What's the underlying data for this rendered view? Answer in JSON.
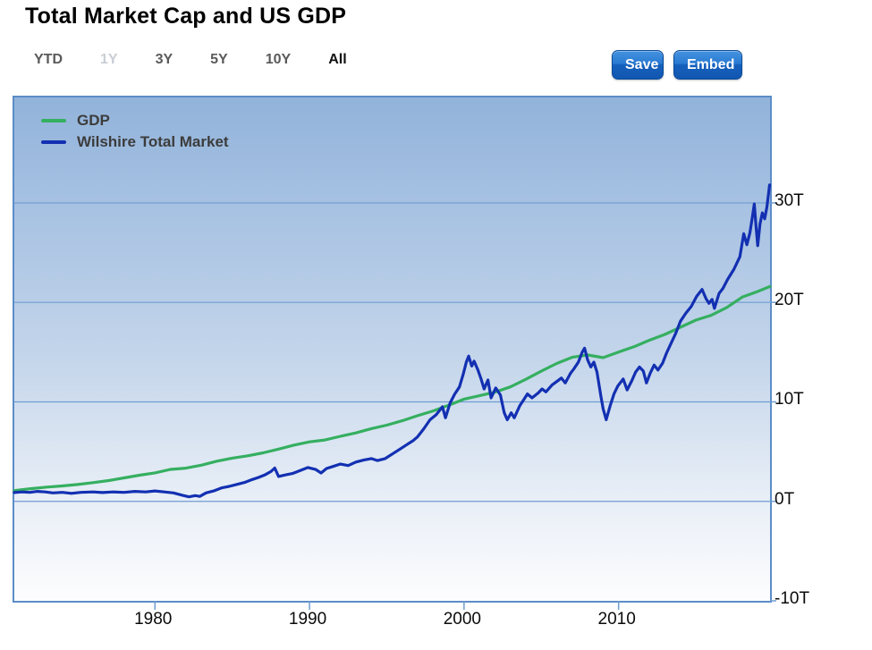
{
  "page": {
    "title": "Total Market Cap and US GDP"
  },
  "toolbar": {
    "ranges": [
      {
        "label": "YTD",
        "state": "normal"
      },
      {
        "label": "1Y",
        "state": "disabled"
      },
      {
        "label": "3Y",
        "state": "normal"
      },
      {
        "label": "5Y",
        "state": "normal"
      },
      {
        "label": "10Y",
        "state": "normal"
      },
      {
        "label": "All",
        "state": "active"
      }
    ],
    "save_label": "Save",
    "embed_label": "Embed"
  },
  "colors": {
    "button_blue": "#1560bd",
    "chart_border": "#5c8dc8",
    "grid": "#6f9cd1",
    "plot_top": "#92b3da",
    "plot_bottom": "#ffffff",
    "gdp_line": "#35af60",
    "wilshire_line": "#1330b2",
    "legend_text": "#3c3c3c"
  },
  "chart_data": {
    "type": "line",
    "title": "Total Market Cap and US GDP",
    "xlabel": "",
    "ylabel": "",
    "unit": "trillions USD",
    "xlim": [
      1970.9,
      2019.8
    ],
    "ylim": [
      -10,
      40.6
    ],
    "grid": "horizontal",
    "grid_values": [
      30,
      20,
      10,
      0
    ],
    "legend_position": "top-left",
    "yticks": [
      {
        "value": 30,
        "label": "30T"
      },
      {
        "value": 20,
        "label": "20T"
      },
      {
        "value": 10,
        "label": "10T"
      },
      {
        "value": 0,
        "label": "0T"
      },
      {
        "value": -10,
        "label": "-10T"
      }
    ],
    "xticks": [
      {
        "value": 1980,
        "label": "1980"
      },
      {
        "value": 1990,
        "label": "1990"
      },
      {
        "value": 2000,
        "label": "2000"
      },
      {
        "value": 2010,
        "label": "2010"
      }
    ],
    "series": [
      {
        "name": "GDP",
        "color": "#35af60",
        "points": [
          [
            1970.9,
            1.08
          ],
          [
            1972,
            1.28
          ],
          [
            1973,
            1.43
          ],
          [
            1974,
            1.55
          ],
          [
            1975,
            1.69
          ],
          [
            1976,
            1.88
          ],
          [
            1977,
            2.09
          ],
          [
            1978,
            2.36
          ],
          [
            1979,
            2.63
          ],
          [
            1980,
            2.86
          ],
          [
            1981,
            3.21
          ],
          [
            1982,
            3.34
          ],
          [
            1983,
            3.63
          ],
          [
            1984,
            4.04
          ],
          [
            1985,
            4.34
          ],
          [
            1986,
            4.58
          ],
          [
            1987,
            4.87
          ],
          [
            1988,
            5.25
          ],
          [
            1989,
            5.66
          ],
          [
            1990,
            5.98
          ],
          [
            1991,
            6.17
          ],
          [
            1992,
            6.54
          ],
          [
            1993,
            6.88
          ],
          [
            1994,
            7.31
          ],
          [
            1995,
            7.66
          ],
          [
            1996,
            8.1
          ],
          [
            1997,
            8.61
          ],
          [
            1998,
            9.09
          ],
          [
            1999,
            9.66
          ],
          [
            2000,
            10.28
          ],
          [
            2001,
            10.62
          ],
          [
            2002,
            10.98
          ],
          [
            2003,
            11.51
          ],
          [
            2004,
            12.27
          ],
          [
            2005,
            13.09
          ],
          [
            2006,
            13.86
          ],
          [
            2007,
            14.48
          ],
          [
            2008,
            14.72
          ],
          [
            2009,
            14.45
          ],
          [
            2010,
            15.0
          ],
          [
            2011,
            15.54
          ],
          [
            2012,
            16.2
          ],
          [
            2013,
            16.78
          ],
          [
            2014,
            17.5
          ],
          [
            2015,
            18.22
          ],
          [
            2016,
            18.71
          ],
          [
            2017,
            19.49
          ],
          [
            2018,
            20.53
          ],
          [
            2019,
            21.1
          ],
          [
            2019.8,
            21.6
          ]
        ]
      },
      {
        "name": "Wilshire Total Market",
        "color": "#1330b2",
        "points": [
          [
            1970.9,
            0.88
          ],
          [
            1971.4,
            0.95
          ],
          [
            1971.9,
            0.9
          ],
          [
            1972.4,
            1.0
          ],
          [
            1972.9,
            0.95
          ],
          [
            1973.4,
            0.85
          ],
          [
            1974,
            0.9
          ],
          [
            1974.6,
            0.8
          ],
          [
            1975.2,
            0.9
          ],
          [
            1976,
            0.95
          ],
          [
            1976.6,
            0.88
          ],
          [
            1977.3,
            0.95
          ],
          [
            1978,
            0.9
          ],
          [
            1978.7,
            1.0
          ],
          [
            1979.4,
            0.95
          ],
          [
            1980,
            1.05
          ],
          [
            1980.6,
            0.95
          ],
          [
            1981.2,
            0.85
          ],
          [
            1981.8,
            0.6
          ],
          [
            1982.2,
            0.45
          ],
          [
            1982.6,
            0.58
          ],
          [
            1982.9,
            0.5
          ],
          [
            1983.3,
            0.85
          ],
          [
            1983.8,
            1.05
          ],
          [
            1984.3,
            1.35
          ],
          [
            1984.8,
            1.5
          ],
          [
            1985.3,
            1.7
          ],
          [
            1985.8,
            1.9
          ],
          [
            1986.3,
            2.2
          ],
          [
            1986.7,
            2.4
          ],
          [
            1987.1,
            2.65
          ],
          [
            1987.5,
            3.0
          ],
          [
            1987.75,
            3.35
          ],
          [
            1988.0,
            2.5
          ],
          [
            1988.4,
            2.65
          ],
          [
            1988.9,
            2.8
          ],
          [
            1989.4,
            3.1
          ],
          [
            1989.9,
            3.4
          ],
          [
            1990.4,
            3.2
          ],
          [
            1990.75,
            2.85
          ],
          [
            1991.1,
            3.3
          ],
          [
            1991.5,
            3.5
          ],
          [
            1992,
            3.75
          ],
          [
            1992.5,
            3.6
          ],
          [
            1993,
            3.95
          ],
          [
            1993.5,
            4.15
          ],
          [
            1994,
            4.3
          ],
          [
            1994.4,
            4.1
          ],
          [
            1994.9,
            4.3
          ],
          [
            1995.4,
            4.8
          ],
          [
            1995.9,
            5.3
          ],
          [
            1996.3,
            5.7
          ],
          [
            1996.7,
            6.1
          ],
          [
            1997,
            6.5
          ],
          [
            1997.4,
            7.3
          ],
          [
            1997.8,
            8.2
          ],
          [
            1998.2,
            8.7
          ],
          [
            1998.6,
            9.5
          ],
          [
            1998.8,
            8.4
          ],
          [
            1999.1,
            9.9
          ],
          [
            1999.4,
            10.8
          ],
          [
            1999.7,
            11.5
          ],
          [
            1999.95,
            12.8
          ],
          [
            2000.15,
            14.0
          ],
          [
            2000.3,
            14.6
          ],
          [
            2000.5,
            13.6
          ],
          [
            2000.65,
            14.1
          ],
          [
            2000.9,
            13.2
          ],
          [
            2001.1,
            12.3
          ],
          [
            2001.3,
            11.3
          ],
          [
            2001.55,
            12.2
          ],
          [
            2001.75,
            10.4
          ],
          [
            2002.05,
            11.4
          ],
          [
            2002.35,
            10.7
          ],
          [
            2002.6,
            8.9
          ],
          [
            2002.8,
            8.2
          ],
          [
            2003.05,
            8.9
          ],
          [
            2003.25,
            8.4
          ],
          [
            2003.6,
            9.6
          ],
          [
            2003.9,
            10.3
          ],
          [
            2004.1,
            10.8
          ],
          [
            2004.4,
            10.4
          ],
          [
            2004.8,
            10.9
          ],
          [
            2005.05,
            11.3
          ],
          [
            2005.3,
            11.0
          ],
          [
            2005.7,
            11.7
          ],
          [
            2006.05,
            12.1
          ],
          [
            2006.3,
            12.4
          ],
          [
            2006.55,
            11.9
          ],
          [
            2006.9,
            12.9
          ],
          [
            2007.1,
            13.3
          ],
          [
            2007.4,
            14.0
          ],
          [
            2007.65,
            15.0
          ],
          [
            2007.8,
            15.4
          ],
          [
            2008.0,
            14.2
          ],
          [
            2008.2,
            13.5
          ],
          [
            2008.4,
            14.0
          ],
          [
            2008.6,
            13.0
          ],
          [
            2008.85,
            10.6
          ],
          [
            2009.0,
            9.3
          ],
          [
            2009.2,
            8.2
          ],
          [
            2009.45,
            9.6
          ],
          [
            2009.7,
            10.8
          ],
          [
            2009.95,
            11.6
          ],
          [
            2010.3,
            12.3
          ],
          [
            2010.55,
            11.2
          ],
          [
            2010.85,
            12.1
          ],
          [
            2011.1,
            13.0
          ],
          [
            2011.35,
            13.5
          ],
          [
            2011.6,
            13.1
          ],
          [
            2011.8,
            11.9
          ],
          [
            2012.05,
            12.9
          ],
          [
            2012.3,
            13.7
          ],
          [
            2012.55,
            13.2
          ],
          [
            2012.85,
            13.9
          ],
          [
            2013.1,
            14.9
          ],
          [
            2013.4,
            15.9
          ],
          [
            2013.7,
            16.9
          ],
          [
            2014.0,
            18.1
          ],
          [
            2014.35,
            18.9
          ],
          [
            2014.7,
            19.6
          ],
          [
            2015.05,
            20.6
          ],
          [
            2015.4,
            21.3
          ],
          [
            2015.65,
            20.4
          ],
          [
            2015.85,
            19.9
          ],
          [
            2016.05,
            20.3
          ],
          [
            2016.2,
            19.4
          ],
          [
            2016.5,
            20.9
          ],
          [
            2016.75,
            21.4
          ],
          [
            2017.05,
            22.3
          ],
          [
            2017.45,
            23.3
          ],
          [
            2017.85,
            24.6
          ],
          [
            2018.1,
            26.9
          ],
          [
            2018.3,
            25.8
          ],
          [
            2018.5,
            27.0
          ],
          [
            2018.65,
            28.5
          ],
          [
            2018.78,
            29.9
          ],
          [
            2018.88,
            27.9
          ],
          [
            2019.0,
            25.7
          ],
          [
            2019.15,
            27.9
          ],
          [
            2019.3,
            29.0
          ],
          [
            2019.45,
            28.4
          ],
          [
            2019.6,
            29.6
          ],
          [
            2019.77,
            31.8
          ]
        ]
      }
    ]
  }
}
